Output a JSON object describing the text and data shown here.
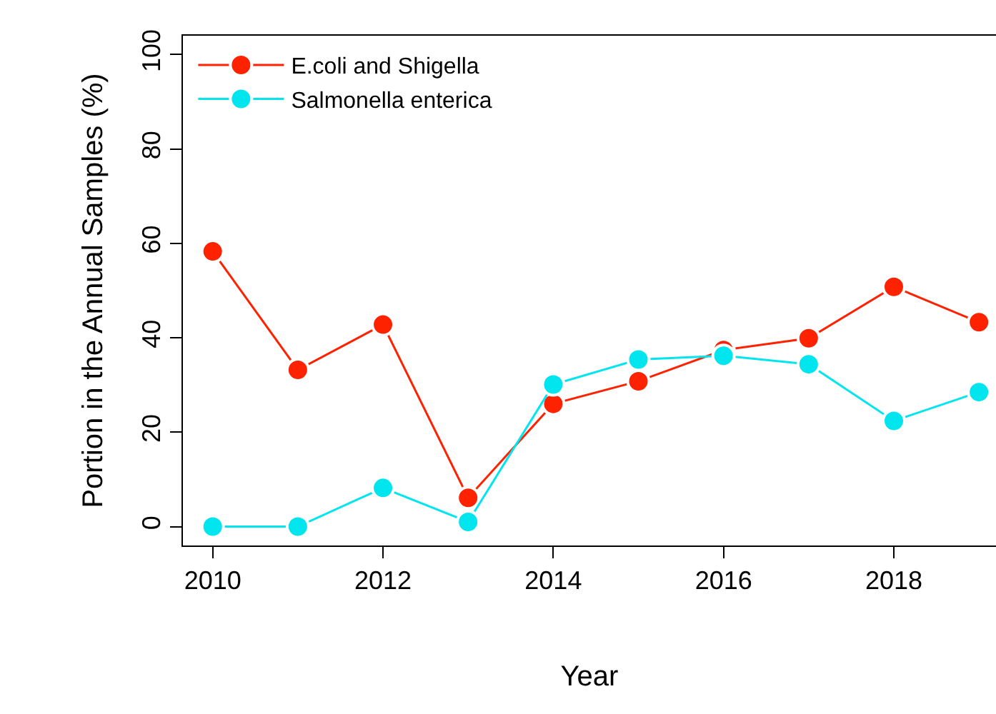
{
  "chart_data": {
    "type": "line",
    "xlabel": "Year",
    "ylabel": "Portion in the Annual Samples (%)",
    "x": [
      2010,
      2011,
      2012,
      2013,
      2014,
      2015,
      2016,
      2017,
      2018,
      2019
    ],
    "series": [
      {
        "name": "E.coli and Shigella",
        "color": "#ff2200",
        "values": [
          58.3,
          33.2,
          42.8,
          6.1,
          26.0,
          30.8,
          37.4,
          39.9,
          50.8,
          43.3
        ]
      },
      {
        "name": "Salmonella enterica",
        "color": "#00e5ee",
        "values": [
          0,
          0,
          8.2,
          1.0,
          30.1,
          35.4,
          36.2,
          34.4,
          22.4,
          28.5
        ]
      }
    ],
    "xlim": [
      2009.65,
      2019.2
    ],
    "xticks": [
      2010,
      2012,
      2014,
      2016,
      2018
    ],
    "ylim": [
      -4,
      104
    ],
    "yticks": [
      0,
      20,
      40,
      60,
      80,
      100
    ],
    "legend": "top left",
    "marker": "circle",
    "line_style": "solid"
  }
}
